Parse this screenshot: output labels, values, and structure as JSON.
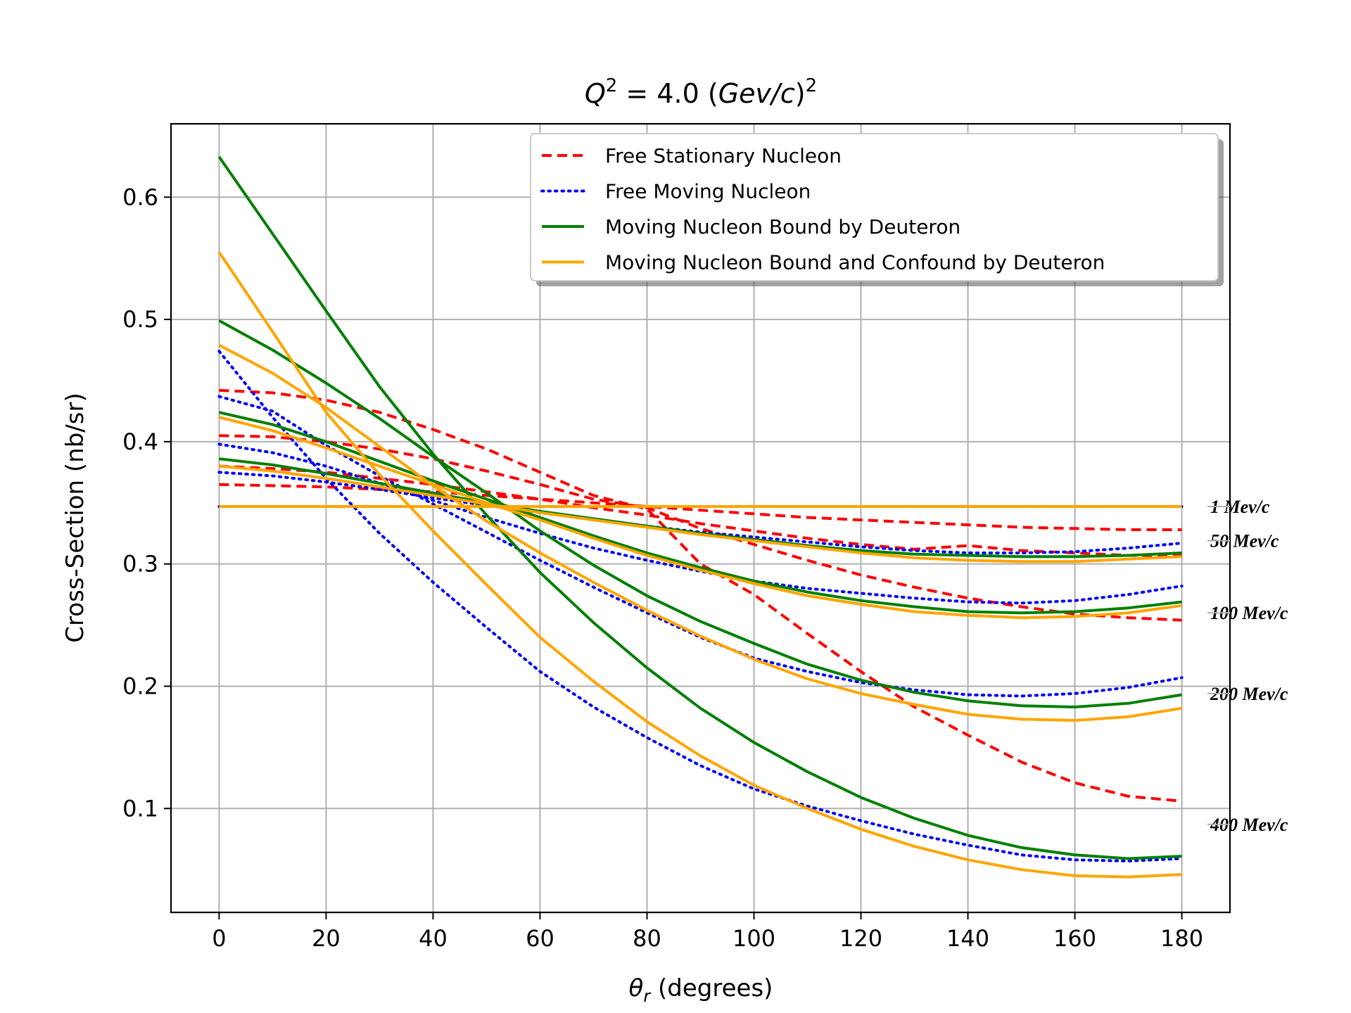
{
  "chart_data": {
    "type": "line",
    "title": "Q² = 4.0 (Gev/c)²",
    "title_parts": {
      "q": "Q",
      "eq": " = 4.0 (",
      "gev": "Gev",
      "slash": "/",
      "c": "c",
      "close": ")",
      "sup": "2"
    },
    "xlabel_parts": {
      "theta": "θ",
      "sub": "r",
      "rest": " (degrees)"
    },
    "xlabel": "θr (degrees)",
    "ylabel": "Cross-Section (nb/sr)",
    "xlim": [
      -9,
      189
    ],
    "ylim": [
      0.015,
      0.66
    ],
    "xticks": [
      0,
      20,
      40,
      60,
      80,
      100,
      120,
      140,
      160,
      180
    ],
    "yticks": [
      0.1,
      0.2,
      0.3,
      0.4,
      0.5,
      0.6
    ],
    "xtick_labels": [
      "0",
      "20",
      "40",
      "60",
      "80",
      "100",
      "120",
      "140",
      "160",
      "180"
    ],
    "ytick_labels": [
      "0.1",
      "0.2",
      "0.3",
      "0.4",
      "0.5",
      "0.6"
    ],
    "grid": true,
    "legend_position": "top-right",
    "x": [
      0,
      10,
      20,
      30,
      40,
      50,
      60,
      70,
      80,
      90,
      100,
      110,
      120,
      130,
      140,
      150,
      160,
      170,
      180
    ],
    "series": [
      {
        "name": "Free Stationary Nucleon",
        "color": "#ff0000",
        "style": "dashed",
        "group": "1 Mev/c",
        "values": [
          0.347,
          0.347,
          0.347,
          0.347,
          0.347,
          0.347,
          0.347,
          0.347,
          0.347,
          0.347,
          0.347,
          0.347,
          0.347,
          0.347,
          0.347,
          0.347,
          0.347,
          0.347,
          0.347
        ]
      },
      {
        "name": "Free Stationary Nucleon",
        "color": "#ff0000",
        "style": "dashed",
        "group": "50 Mev/c",
        "values": [
          0.365,
          0.364,
          0.363,
          0.361,
          0.359,
          0.356,
          0.353,
          0.35,
          0.347,
          0.344,
          0.341,
          0.338,
          0.336,
          0.334,
          0.332,
          0.33,
          0.329,
          0.328,
          0.328
        ]
      },
      {
        "name": "Free Stationary Nucleon",
        "color": "#ff0000",
        "style": "dashed",
        "group": "100 Mev/c",
        "values": [
          0.38,
          0.378,
          0.375,
          0.37,
          0.365,
          0.359,
          0.353,
          0.346,
          0.34,
          0.333,
          0.327,
          0.321,
          0.316,
          0.312,
          0.315,
          0.311,
          0.309,
          0.307,
          0.307
        ]
      },
      {
        "name": "Free Stationary Nucleon",
        "color": "#ff0000",
        "style": "dashed",
        "group": "200 Mev/c",
        "values": [
          0.405,
          0.404,
          0.4,
          0.394,
          0.386,
          0.376,
          0.365,
          0.353,
          0.346,
          0.329,
          0.316,
          0.303,
          0.291,
          0.281,
          0.272,
          0.265,
          0.259,
          0.256,
          0.254
        ]
      },
      {
        "name": "Free Stationary Nucleon",
        "color": "#ff0000",
        "style": "dashed",
        "group": "400 Mev/c",
        "values": [
          0.442,
          0.44,
          0.434,
          0.424,
          0.41,
          0.394,
          0.375,
          0.356,
          0.345,
          0.3,
          0.275,
          0.243,
          0.212,
          0.183,
          0.16,
          0.138,
          0.121,
          0.11,
          0.106
        ]
      },
      {
        "name": "Free Moving Nucleon",
        "color": "#0000ff",
        "style": "dotted",
        "group": "1 Mev/c",
        "values": [
          0.347,
          0.347,
          0.347,
          0.347,
          0.347,
          0.347,
          0.347,
          0.347,
          0.347,
          0.347,
          0.347,
          0.347,
          0.347,
          0.347,
          0.347,
          0.347,
          0.347,
          0.347,
          0.347
        ]
      },
      {
        "name": "Free Moving Nucleon",
        "color": "#0000ff",
        "style": "dotted",
        "group": "50 Mev/c",
        "values": [
          0.375,
          0.372,
          0.367,
          0.361,
          0.354,
          0.348,
          0.342,
          0.336,
          0.331,
          0.326,
          0.322,
          0.318,
          0.314,
          0.311,
          0.309,
          0.309,
          0.31,
          0.313,
          0.317
        ]
      },
      {
        "name": "Free Moving Nucleon",
        "color": "#0000ff",
        "style": "dotted",
        "group": "100 Mev/c",
        "values": [
          0.398,
          0.391,
          0.38,
          0.366,
          0.352,
          0.338,
          0.325,
          0.313,
          0.303,
          0.294,
          0.286,
          0.28,
          0.276,
          0.272,
          0.269,
          0.268,
          0.27,
          0.275,
          0.282
        ]
      },
      {
        "name": "Free Moving Nucleon",
        "color": "#0000ff",
        "style": "dotted",
        "group": "200 Mev/c",
        "values": [
          0.437,
          0.425,
          0.397,
          0.372,
          0.349,
          0.326,
          0.303,
          0.281,
          0.26,
          0.24,
          0.223,
          0.212,
          0.203,
          0.197,
          0.193,
          0.192,
          0.194,
          0.199,
          0.207
        ]
      },
      {
        "name": "Free Moving Nucleon",
        "color": "#0000ff",
        "style": "dotted",
        "group": "400 Mev/c",
        "values": [
          0.474,
          0.42,
          0.37,
          0.325,
          0.285,
          0.248,
          0.212,
          0.183,
          0.158,
          0.135,
          0.116,
          0.102,
          0.09,
          0.079,
          0.07,
          0.062,
          0.058,
          0.057,
          0.059
        ]
      },
      {
        "name": "Moving Nucleon Bound by Deuteron",
        "color": "#008000",
        "style": "solid",
        "group": "1 Mev/c",
        "values": [
          0.347,
          0.347,
          0.347,
          0.347,
          0.347,
          0.347,
          0.347,
          0.347,
          0.347,
          0.347,
          0.347,
          0.347,
          0.347,
          0.347,
          0.347,
          0.347,
          0.347,
          0.347,
          0.347
        ]
      },
      {
        "name": "Moving Nucleon Bound by Deuteron",
        "color": "#008000",
        "style": "solid",
        "group": "50 Mev/c",
        "values": [
          0.386,
          0.381,
          0.374,
          0.366,
          0.358,
          0.35,
          0.343,
          0.337,
          0.331,
          0.325,
          0.32,
          0.315,
          0.311,
          0.308,
          0.307,
          0.306,
          0.306,
          0.307,
          0.309
        ]
      },
      {
        "name": "Moving Nucleon Bound by Deuteron",
        "color": "#008000",
        "style": "solid",
        "group": "100 Mev/c",
        "values": [
          0.424,
          0.414,
          0.4,
          0.384,
          0.368,
          0.353,
          0.338,
          0.323,
          0.309,
          0.297,
          0.286,
          0.277,
          0.27,
          0.265,
          0.261,
          0.26,
          0.261,
          0.264,
          0.269
        ]
      },
      {
        "name": "Moving Nucleon Bound by Deuteron",
        "color": "#008000",
        "style": "solid",
        "group": "200 Mev/c",
        "values": [
          0.499,
          0.475,
          0.448,
          0.419,
          0.388,
          0.358,
          0.327,
          0.299,
          0.274,
          0.253,
          0.235,
          0.218,
          0.205,
          0.195,
          0.188,
          0.184,
          0.183,
          0.186,
          0.193
        ]
      },
      {
        "name": "Moving Nucleon Bound by Deuteron",
        "color": "#008000",
        "style": "solid",
        "group": "400 Mev/c",
        "values": [
          0.633,
          0.57,
          0.507,
          0.445,
          0.39,
          0.34,
          0.293,
          0.252,
          0.215,
          0.182,
          0.154,
          0.13,
          0.109,
          0.092,
          0.078,
          0.068,
          0.062,
          0.059,
          0.061
        ]
      },
      {
        "name": "Moving Nucleon Bound and Confound by Deuteron",
        "color": "#ffa500",
        "style": "solid",
        "group": "1 Mev/c",
        "values": [
          0.347,
          0.347,
          0.347,
          0.347,
          0.347,
          0.347,
          0.347,
          0.347,
          0.347,
          0.347,
          0.347,
          0.347,
          0.347,
          0.347,
          0.347,
          0.347,
          0.347,
          0.347,
          0.347
        ]
      },
      {
        "name": "Moving Nucleon Bound and Confound by Deuteron",
        "color": "#ffa500",
        "style": "solid",
        "group": "50 Mev/c",
        "values": [
          0.38,
          0.376,
          0.37,
          0.363,
          0.356,
          0.349,
          0.342,
          0.336,
          0.33,
          0.324,
          0.319,
          0.314,
          0.309,
          0.305,
          0.303,
          0.302,
          0.302,
          0.304,
          0.306
        ]
      },
      {
        "name": "Moving Nucleon Bound and Confound by Deuteron",
        "color": "#ffa500",
        "style": "solid",
        "group": "100 Mev/c",
        "values": [
          0.42,
          0.409,
          0.395,
          0.38,
          0.365,
          0.35,
          0.336,
          0.321,
          0.307,
          0.295,
          0.284,
          0.274,
          0.267,
          0.261,
          0.258,
          0.256,
          0.257,
          0.26,
          0.266
        ]
      },
      {
        "name": "Moving Nucleon Bound and Confound by Deuteron",
        "color": "#ffa500",
        "style": "solid",
        "group": "200 Mev/c",
        "values": [
          0.479,
          0.456,
          0.428,
          0.396,
          0.364,
          0.335,
          0.309,
          0.285,
          0.262,
          0.241,
          0.222,
          0.206,
          0.194,
          0.185,
          0.177,
          0.173,
          0.172,
          0.175,
          0.182
        ]
      },
      {
        "name": "Moving Nucleon Bound and Confound by Deuteron",
        "color": "#ffa500",
        "style": "solid",
        "group": "400 Mev/c",
        "values": [
          0.555,
          0.49,
          0.424,
          0.373,
          0.327,
          0.283,
          0.24,
          0.204,
          0.171,
          0.143,
          0.119,
          0.1,
          0.083,
          0.069,
          0.058,
          0.05,
          0.045,
          0.044,
          0.046
        ]
      }
    ],
    "legend": [
      {
        "label": "Free Stationary Nucleon",
        "color": "#ff0000",
        "style": "dashed"
      },
      {
        "label": "Free Moving Nucleon",
        "color": "#0000ff",
        "style": "dotted"
      },
      {
        "label": "Moving Nucleon Bound by Deuteron",
        "color": "#008000",
        "style": "solid"
      },
      {
        "label": "Moving Nucleon Bound and Confound by Deuteron",
        "color": "#ffa500",
        "style": "solid"
      }
    ],
    "annotations": [
      {
        "text": "1 Mev/c",
        "y": 0.347
      },
      {
        "text": "50 Mev/c",
        "y": 0.319
      },
      {
        "text": "100 Mev/c",
        "y": 0.26
      },
      {
        "text": "200 Mev/c",
        "y": 0.194
      },
      {
        "text": "400 Mev/c",
        "y": 0.087
      }
    ]
  }
}
